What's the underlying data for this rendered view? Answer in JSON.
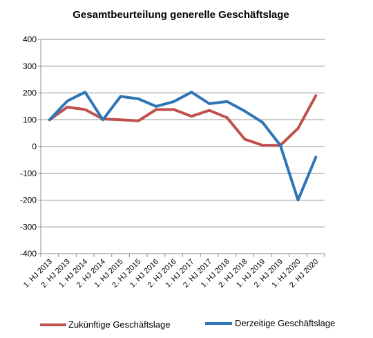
{
  "chart_data": {
    "type": "line",
    "title": "Gesamtbeurteilung generelle Geschäftslage",
    "xlabel": "",
    "ylabel": "",
    "ylim": [
      -400,
      400
    ],
    "yticks": [
      400,
      300,
      200,
      100,
      0,
      -100,
      -200,
      -300,
      -400
    ],
    "grid": true,
    "legend_position": "bottom",
    "categories": [
      "1. HJ 2013",
      "2. HJ 2013",
      "1. HJ 2014",
      "2. HJ 2014",
      "1. HJ 2015",
      "2. HJ 2015",
      "1. HJ 2016",
      "2. HJ 2016",
      "1. HJ 2017",
      "2. HJ 2017",
      "1. HJ 2018",
      "2. HJ 2018",
      "1. HJ 2019",
      "2. HJ 2019",
      "1. HJ 2020",
      "2. HJ 2020"
    ],
    "series": [
      {
        "name": "Zukünftige Geschäftslage",
        "color": "#c0504d",
        "values": [
          100,
          147,
          138,
          103,
          100,
          96,
          138,
          138,
          113,
          135,
          108,
          27,
          5,
          4,
          68,
          190
        ]
      },
      {
        "name": "Derzeitige Geschäftslage",
        "color": "#2e75b6",
        "values": [
          100,
          170,
          203,
          100,
          187,
          178,
          150,
          168,
          203,
          160,
          168,
          132,
          90,
          5,
          -200,
          -40
        ]
      }
    ]
  }
}
